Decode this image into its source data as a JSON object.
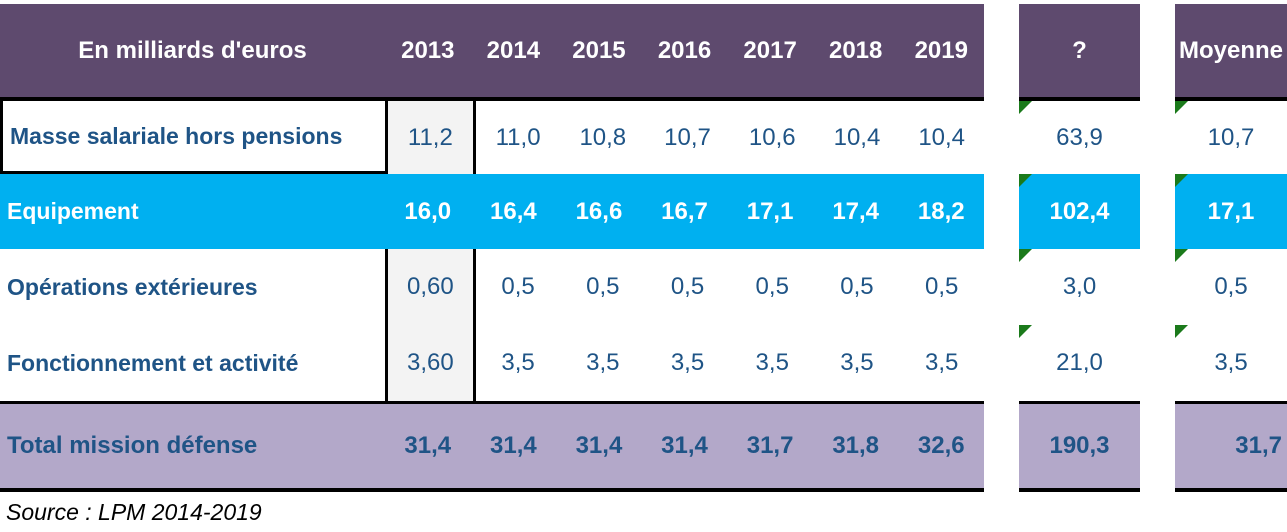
{
  "table": {
    "unit_label": "En milliards d'euros",
    "years": [
      "2013",
      "2014",
      "2015",
      "2016",
      "2017",
      "2018",
      "2019"
    ],
    "sum_header": "?",
    "avg_header": "Moyenne",
    "rows": [
      {
        "label": "Masse salariale hors pensions",
        "values": [
          "11,2",
          "11,0",
          "10,8",
          "10,7",
          "10,6",
          "10,4",
          "10,4"
        ],
        "sum": "63,9",
        "avg": "10,7",
        "highlight": false
      },
      {
        "label": "Equipement",
        "values": [
          "16,0",
          "16,4",
          "16,6",
          "16,7",
          "17,1",
          "17,4",
          "18,2"
        ],
        "sum": "102,4",
        "avg": "17,1",
        "highlight": true
      },
      {
        "label": "Opérations extérieures",
        "values": [
          "0,60",
          "0,5",
          "0,5",
          "0,5",
          "0,5",
          "0,5",
          "0,5"
        ],
        "sum": "3,0",
        "avg": "0,5",
        "highlight": false
      },
      {
        "label": "Fonctionnement et activité",
        "values": [
          "3,60",
          "3,5",
          "3,5",
          "3,5",
          "3,5",
          "3,5",
          "3,5"
        ],
        "sum": "21,0",
        "avg": "3,5",
        "highlight": false
      }
    ],
    "total": {
      "label": "Total mission défense",
      "values": [
        "31,4",
        "31,4",
        "31,4",
        "31,4",
        "31,7",
        "31,8",
        "32,6"
      ],
      "sum": "190,3",
      "avg": "31,7"
    }
  },
  "source_note": "Source : LPM 2014-2019",
  "colors": {
    "header_bg": "#5E4A6E",
    "highlight_bg": "#00B0F0",
    "total_bg": "#B3A8C9",
    "value_text": "#1F5486",
    "header_text": "#FFFFFF",
    "col_2013_bg": "#F3F3F3",
    "error_indicator_green": "#1B7A1B",
    "border_black": "#000000"
  }
}
